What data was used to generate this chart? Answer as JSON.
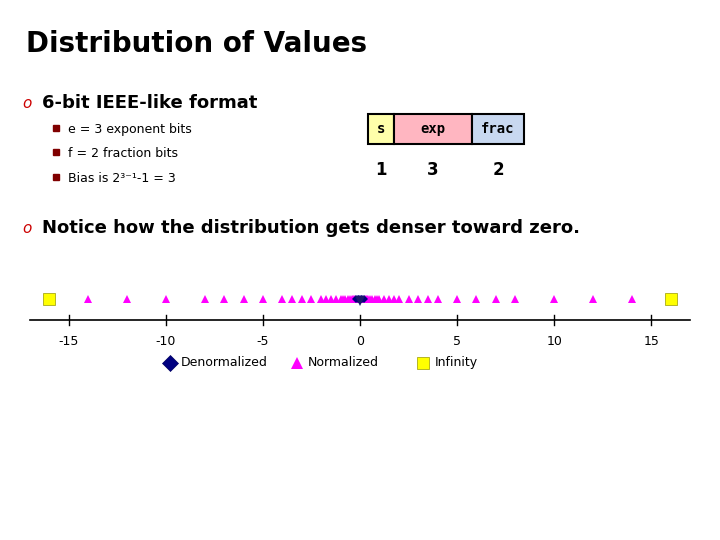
{
  "title": "Distribution of Values",
  "bullet1": "6-bit IEEE-like format",
  "sub1": "e = 3 exponent bits",
  "sub2": "f = 2 fraction bits",
  "sub3": "Bias is 2³⁻¹-1 = 3",
  "notice": "Notice how the distribution gets denser toward zero.",
  "bg_color": "#ffffff",
  "gold_color": "#F5C200",
  "title_color": "#000000",
  "sub_color": "#800000",
  "box_s_bg": "#FFFFAA",
  "box_exp_bg": "#FFB6C1",
  "box_frac_bg": "#C8D8F0",
  "normalized_color": "#FF00FF",
  "denormalized_color": "#000080",
  "infinity_color": "#FFFF00",
  "inf_values": [
    16,
    -16
  ]
}
